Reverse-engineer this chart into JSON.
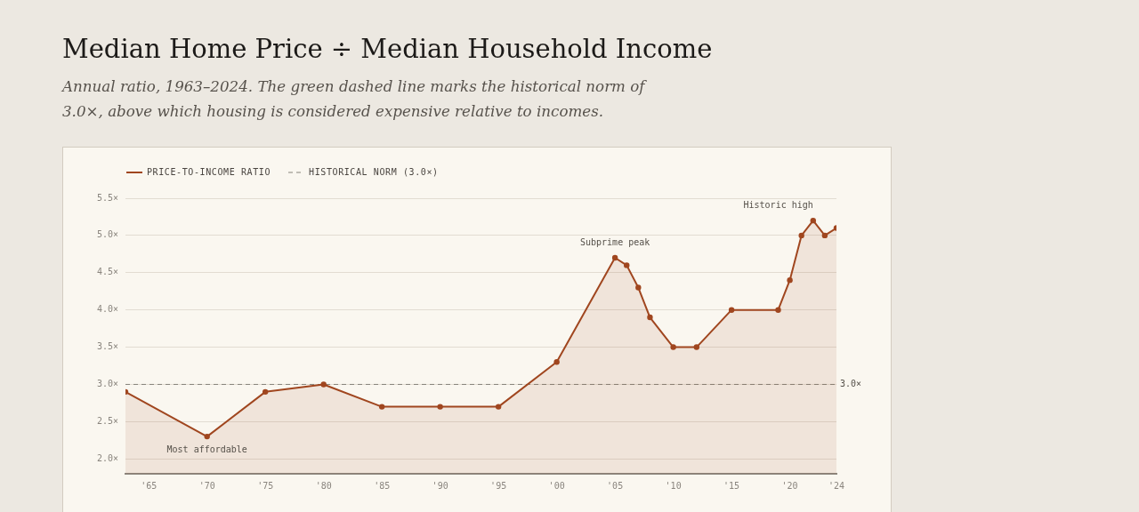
{
  "chart_data": {
    "type": "area",
    "title": "Median Home Price ÷ Median Household Income",
    "subtitle": "Annual ratio, 1963–2024. The green dashed line marks the historical norm of 3.0×, above which housing is considered expensive relative to incomes.",
    "x": [
      1963,
      1970,
      1975,
      1980,
      1985,
      1990,
      1995,
      2000,
      2005,
      2006,
      2007,
      2008,
      2010,
      2012,
      2015,
      2019,
      2020,
      2021,
      2022,
      2023,
      2024
    ],
    "series": [
      {
        "name": "PRICE-TO-INCOME RATIO",
        "color": "#a0461f",
        "values": [
          2.9,
          2.3,
          2.9,
          3.0,
          2.7,
          2.7,
          2.7,
          3.3,
          4.7,
          4.6,
          4.3,
          3.9,
          3.5,
          3.5,
          4.0,
          4.0,
          4.4,
          5.0,
          5.2,
          5.0,
          5.1
        ]
      }
    ],
    "xlim": [
      1963,
      2024
    ],
    "xticks": [
      {
        "value": 1965,
        "label": "'65"
      },
      {
        "value": 1970,
        "label": "'70"
      },
      {
        "value": 1975,
        "label": "'75"
      },
      {
        "value": 1980,
        "label": "'80"
      },
      {
        "value": 1985,
        "label": "'85"
      },
      {
        "value": 1990,
        "label": "'90"
      },
      {
        "value": 1995,
        "label": "'95"
      },
      {
        "value": 2000,
        "label": "'00"
      },
      {
        "value": 2005,
        "label": "'05"
      },
      {
        "value": 2010,
        "label": "'10"
      },
      {
        "value": 2015,
        "label": "'15"
      },
      {
        "value": 2020,
        "label": "'20"
      },
      {
        "value": 2024,
        "label": "'24"
      }
    ],
    "ylim": [
      1.8,
      5.5
    ],
    "yticks": [
      {
        "value": 2.0,
        "label": "2.0×"
      },
      {
        "value": 2.5,
        "label": "2.5×"
      },
      {
        "value": 3.0,
        "label": "3.0×"
      },
      {
        "value": 3.5,
        "label": "3.5×"
      },
      {
        "value": 4.0,
        "label": "4.0×"
      },
      {
        "value": 4.5,
        "label": "4.5×"
      },
      {
        "value": 5.0,
        "label": "5.0×"
      },
      {
        "value": 5.5,
        "label": "5.5×"
      }
    ],
    "ref_lines": [
      {
        "axis": "y",
        "value": 3.0,
        "label": "HISTORICAL NORM (3.0×)",
        "color": "#86837b",
        "line_style": "dashed"
      }
    ],
    "annotations": [
      {
        "text": "Most affordable",
        "x": 1970,
        "y": 2.3
      },
      {
        "text": "Subprime peak",
        "x": 2005,
        "y": 4.7
      },
      {
        "text": "Historic high",
        "x": 2022,
        "y": 5.2
      },
      {
        "text": "3.0×",
        "x": 2024,
        "y": 3.0
      }
    ],
    "grid": "y",
    "legend": "top left",
    "marker": "circle",
    "line_style": "solid"
  }
}
